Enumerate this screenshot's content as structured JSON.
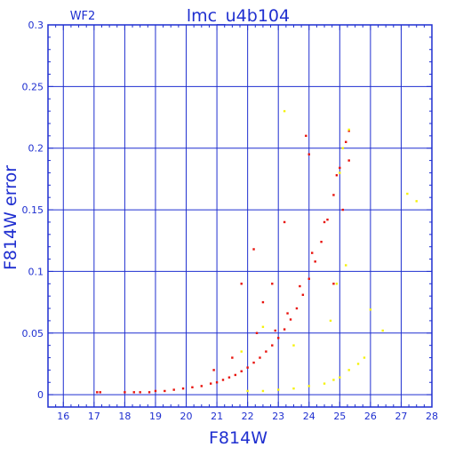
{
  "chip_label": "WF2",
  "title": "lmc_u4b104",
  "xlabel": "F814W",
  "ylabel": "F814W error",
  "colors": {
    "axis": "#1f2fd0",
    "grid": "#1f2fd0",
    "primary": "#e8120c",
    "secondary": "#f5f20a"
  },
  "chart_data": {
    "type": "scatter",
    "title": "lmc_u4b104",
    "xlabel": "F814W",
    "ylabel": "F814W error",
    "xlim": [
      15.5,
      28
    ],
    "ylim": [
      -0.01,
      0.3
    ],
    "xticks": [
      16,
      17,
      18,
      19,
      20,
      21,
      22,
      23,
      24,
      25,
      26,
      27,
      28
    ],
    "yticks": [
      0,
      0.05,
      0.1,
      0.15,
      0.2,
      0.25,
      0.3
    ],
    "ytick_labels": [
      "0",
      "0.05",
      "0.1",
      "0.15",
      "0.2",
      "0.25",
      "0.3"
    ],
    "grid": true,
    "series": [
      {
        "color": "red",
        "points": [
          [
            17.1,
            0.002
          ],
          [
            17.2,
            0.002
          ],
          [
            18.0,
            0.002
          ],
          [
            18.3,
            0.002
          ],
          [
            18.5,
            0.002
          ],
          [
            18.8,
            0.002
          ],
          [
            19.0,
            0.003
          ],
          [
            19.3,
            0.003
          ],
          [
            19.6,
            0.004
          ],
          [
            19.9,
            0.005
          ],
          [
            20.2,
            0.006
          ],
          [
            20.5,
            0.007
          ],
          [
            20.8,
            0.009
          ],
          [
            21.0,
            0.01
          ],
          [
            21.2,
            0.012
          ],
          [
            21.4,
            0.014
          ],
          [
            21.6,
            0.016
          ],
          [
            21.8,
            0.019
          ],
          [
            22.0,
            0.022
          ],
          [
            22.2,
            0.026
          ],
          [
            22.4,
            0.03
          ],
          [
            22.6,
            0.035
          ],
          [
            22.8,
            0.04
          ],
          [
            23.0,
            0.046
          ],
          [
            23.2,
            0.053
          ],
          [
            23.4,
            0.061
          ],
          [
            23.6,
            0.07
          ],
          [
            23.8,
            0.081
          ],
          [
            24.0,
            0.094
          ],
          [
            24.2,
            0.108
          ],
          [
            24.4,
            0.124
          ],
          [
            24.6,
            0.142
          ],
          [
            24.8,
            0.162
          ],
          [
            25.0,
            0.184
          ],
          [
            25.2,
            0.205
          ],
          [
            25.3,
            0.214
          ],
          [
            22.9,
            0.052
          ],
          [
            23.3,
            0.066
          ],
          [
            23.7,
            0.088
          ],
          [
            24.1,
            0.115
          ],
          [
            24.5,
            0.14
          ],
          [
            24.9,
            0.178
          ],
          [
            22.5,
            0.075
          ],
          [
            22.8,
            0.09
          ],
          [
            23.9,
            0.21
          ],
          [
            24.0,
            0.195
          ],
          [
            21.8,
            0.09
          ],
          [
            22.2,
            0.118
          ],
          [
            23.2,
            0.14
          ],
          [
            22.3,
            0.05
          ],
          [
            21.5,
            0.03
          ],
          [
            20.9,
            0.02
          ],
          [
            24.8,
            0.09
          ],
          [
            25.1,
            0.15
          ],
          [
            25.3,
            0.19
          ]
        ]
      },
      {
        "color": "yellow",
        "points": [
          [
            22.0,
            0.003
          ],
          [
            22.5,
            0.003
          ],
          [
            23.0,
            0.004
          ],
          [
            23.5,
            0.005
          ],
          [
            24.0,
            0.007
          ],
          [
            24.5,
            0.009
          ],
          [
            24.8,
            0.012
          ],
          [
            25.0,
            0.014
          ],
          [
            25.3,
            0.02
          ],
          [
            25.6,
            0.025
          ],
          [
            25.8,
            0.03
          ],
          [
            24.7,
            0.06
          ],
          [
            24.9,
            0.09
          ],
          [
            25.2,
            0.105
          ],
          [
            25.0,
            0.18
          ],
          [
            25.1,
            0.2
          ],
          [
            25.3,
            0.215
          ],
          [
            22.5,
            0.055
          ],
          [
            21.8,
            0.035
          ],
          [
            23.5,
            0.04
          ],
          [
            26.0,
            0.069
          ],
          [
            27.2,
            0.163
          ],
          [
            27.5,
            0.157
          ],
          [
            26.4,
            0.052
          ],
          [
            23.2,
            0.23
          ]
        ]
      }
    ]
  }
}
